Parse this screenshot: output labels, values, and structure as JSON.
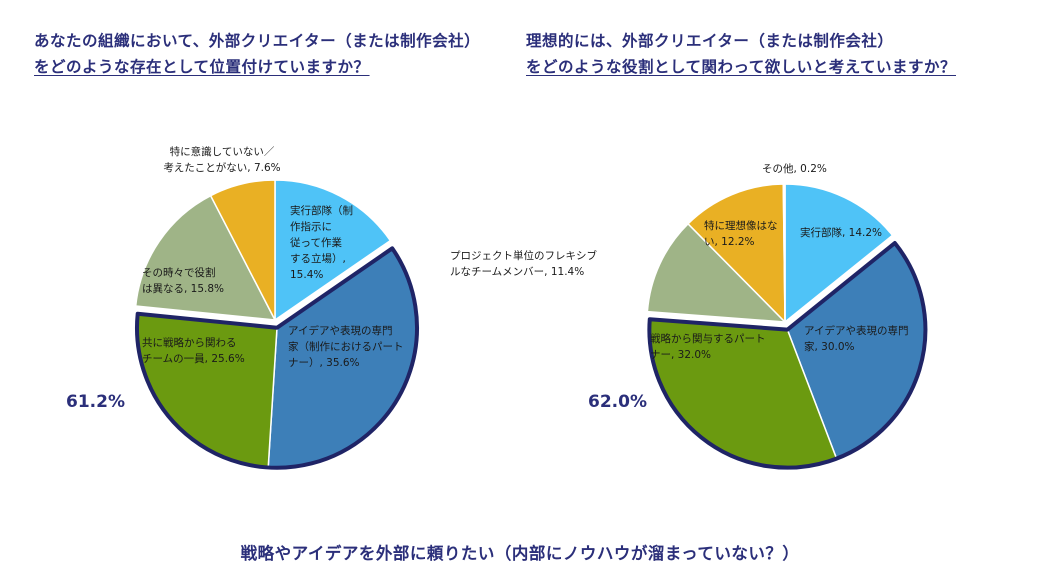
{
  "questions": {
    "left": {
      "line1": "あなたの組織において、外部クリエイター（または制作会社）",
      "line2": "をどのような存在として位置付けていますか？"
    },
    "right": {
      "line1": "理想的には、外部クリエイター（または制作会社）",
      "line2": "をどのような役割として関わって欲しいと考えていますか？"
    }
  },
  "footer": "戦略やアイデアを外部に頼りたい（内部にノウハウが溜まっていない？）",
  "chart_data": [
    {
      "type": "pie",
      "highlight_total": "61.2%",
      "slices": [
        {
          "label": [
            "実行部隊（制",
            "作指示に",
            "従って作業",
            "する立場）,",
            "15.4%"
          ],
          "value": 15.4,
          "color": "#4fc3f7",
          "highlighted": false
        },
        {
          "label": [
            "アイデアや表現の専門",
            "家（制作におけるパート",
            "ナー）, 35.6%"
          ],
          "value": 35.6,
          "color": "#3d7fb8",
          "highlighted": true
        },
        {
          "label": [
            "共に戦略から関わる",
            "チームの一員, 25.6%"
          ],
          "value": 25.6,
          "color": "#6b9a10",
          "highlighted": true
        },
        {
          "label": [
            "その時々で役割",
            "は異なる, 15.8%"
          ],
          "value": 15.8,
          "color": "#9fb487",
          "highlighted": false
        },
        {
          "label": [
            "特に意識していない／",
            "考えたことがない, 7.6%"
          ],
          "value": 7.6,
          "color": "#e9b024",
          "highlighted": false
        }
      ]
    },
    {
      "type": "pie",
      "highlight_total": "62.0%",
      "slices": [
        {
          "label": [
            "実行部隊, 14.2%"
          ],
          "value": 14.2,
          "color": "#4fc3f7",
          "highlighted": false
        },
        {
          "label": [
            "アイデアや表現の専門",
            "家, 30.0%"
          ],
          "value": 30.0,
          "color": "#3d7fb8",
          "highlighted": true
        },
        {
          "label": [
            "戦略から関与するパート",
            "ナー, 32.0%"
          ],
          "value": 32.0,
          "color": "#6b9a10",
          "highlighted": true
        },
        {
          "label": [
            "プロジェクト単位のフレキシブ",
            "ルなチームメンバー, 11.4%"
          ],
          "value": 11.4,
          "color": "#9fb487",
          "highlighted": false
        },
        {
          "label": [
            "特に理想像はな",
            "い, 12.2%"
          ],
          "value": 12.2,
          "color": "#e9b024",
          "highlighted": false
        },
        {
          "label": [
            "その他, 0.2%"
          ],
          "value": 0.2,
          "color": "#ffffff",
          "highlighted": false
        }
      ]
    }
  ]
}
